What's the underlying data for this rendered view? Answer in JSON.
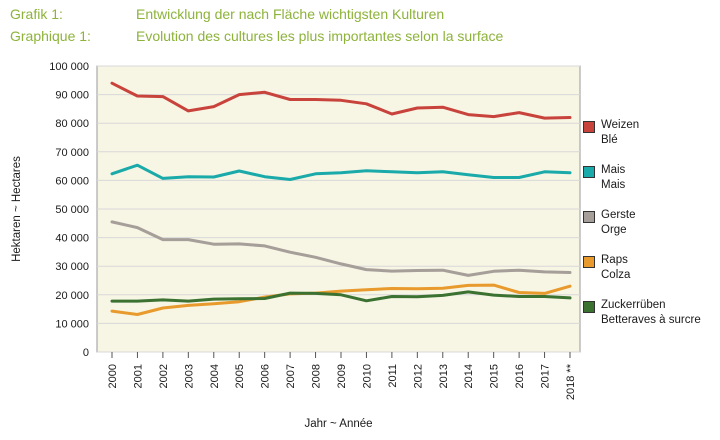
{
  "header": {
    "line1_label": "Grafik 1:",
    "line1_text": "Entwicklung der nach Fläche wichtigsten Kulturen",
    "line2_label": "Graphique 1:",
    "line2_text": "Evolution des cultures les plus importantes selon la surface"
  },
  "colors": {
    "header": "#8db33a",
    "plot_background": "#f7f5e4",
    "grid": "#d8d8d8"
  },
  "chart_data": {
    "type": "line",
    "x": [
      "2000",
      "2001",
      "2002",
      "2003",
      "2004",
      "2005",
      "2006",
      "2007",
      "2008",
      "2009",
      "2010",
      "2011",
      "2012",
      "2013",
      "2014",
      "2015",
      "2016",
      "2017",
      "2018 **"
    ],
    "xlabel": "Jahr  ~  Année",
    "ylabel": "Hektaren  ~  Hectares",
    "ylim": [
      0,
      100000
    ],
    "yticks": [
      "0",
      "10 000",
      "20 000",
      "30 000",
      "40 000",
      "50 000",
      "60 000",
      "70 000",
      "80 000",
      "90 000",
      "100 000"
    ],
    "grid": true,
    "legend_position": "right",
    "series": [
      {
        "name": "Weizen",
        "name2": "Blé",
        "color": "#c8433b",
        "values": [
          94000,
          89500,
          89300,
          84300,
          85800,
          90000,
          90800,
          88300,
          88300,
          88000,
          86800,
          83200,
          85300,
          85600,
          83000,
          82300,
          83700,
          81800,
          82000
        ]
      },
      {
        "name": "Mais",
        "name2": "Mais",
        "color": "#1aaaa9",
        "values": [
          62300,
          65300,
          60700,
          61300,
          61200,
          63300,
          61300,
          60300,
          62300,
          62700,
          63400,
          63000,
          62700,
          63000,
          62000,
          61000,
          61000,
          63000,
          62700
        ]
      },
      {
        "name": "Gerste",
        "name2": "Orge",
        "color": "#a59e99",
        "values": [
          45500,
          43500,
          39300,
          39300,
          37700,
          37800,
          37100,
          34900,
          33100,
          30800,
          28800,
          28300,
          28500,
          28600,
          26800,
          28200,
          28600,
          28000,
          27800
        ]
      },
      {
        "name": "Raps",
        "name2": "Colza",
        "color": "#e89a2c",
        "values": [
          14300,
          13100,
          15400,
          16300,
          16900,
          17600,
          19200,
          20300,
          20600,
          21300,
          21800,
          22200,
          22100,
          22300,
          23300,
          23400,
          20800,
          20500,
          23000
        ]
      },
      {
        "name": "Zuckerrüben",
        "name2": "Betteraves à surcre",
        "color": "#3b7231",
        "values": [
          17800,
          17800,
          18200,
          17800,
          18500,
          18600,
          18700,
          20600,
          20500,
          20000,
          17900,
          19400,
          19300,
          19800,
          21000,
          19900,
          19400,
          19400,
          18900
        ]
      }
    ]
  }
}
